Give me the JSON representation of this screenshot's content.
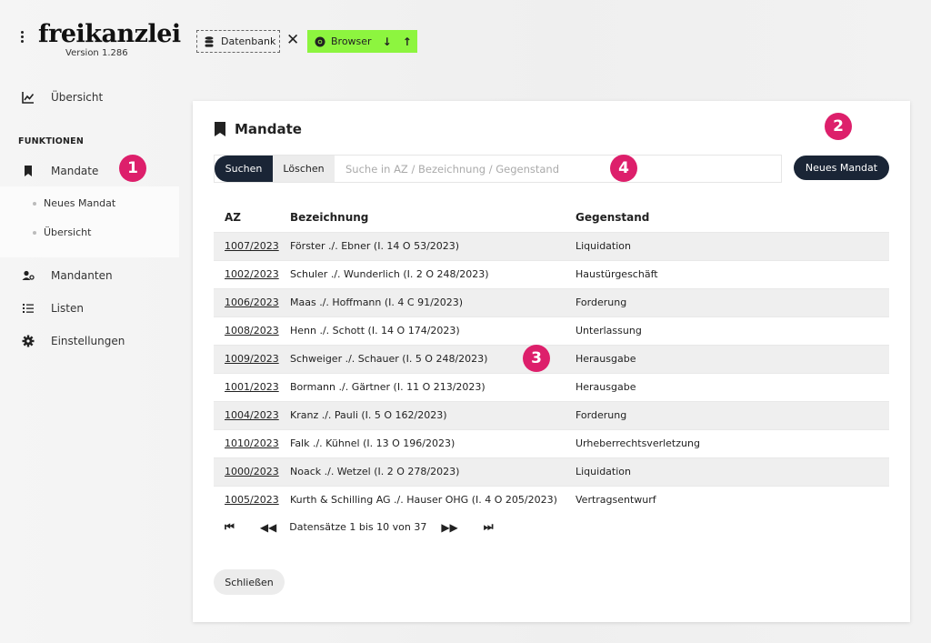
{
  "header": {
    "logo": "freikanzlei",
    "version": "Version 1.286",
    "db_label": "Datenbank",
    "sep": "✕",
    "browser_label": "Browser",
    "browser_arrows": "↓ ↑"
  },
  "sidebar": {
    "overview": "Übersicht",
    "section": "FUNKTIONEN",
    "mandate": "Mandate",
    "sub_new": "Neues Mandat",
    "sub_overview": "Übersicht",
    "clients": "Mandanten",
    "lists": "Listen",
    "settings": "Einstellungen"
  },
  "badges": [
    "1",
    "2",
    "3",
    "4"
  ],
  "main": {
    "title": "Mandate",
    "search_button": "Suchen",
    "clear_button": "Löschen",
    "search_placeholder": "Suche in AZ / Bezeichnung / Gegenstand",
    "new_button": "Neues Mandat",
    "columns": [
      "AZ",
      "Bezeichnung",
      "Gegenstand"
    ],
    "rows": [
      [
        "1007/2023",
        "Förster ./. Ebner (I. 14 O 53/2023)",
        "Liquidation"
      ],
      [
        "1002/2023",
        "Schuler ./. Wunderlich (I. 2 O 248/2023)",
        "Haustürgeschäft"
      ],
      [
        "1006/2023",
        "Maas ./. Hoffmann (I. 4 C 91/2023)",
        "Forderung"
      ],
      [
        "1008/2023",
        "Henn ./. Schott (I. 14 O 174/2023)",
        "Unterlassung"
      ],
      [
        "1009/2023",
        "Schweiger ./. Schauer (I. 5 O 248/2023)",
        "Herausgabe"
      ],
      [
        "1001/2023",
        "Bormann ./. Gärtner (I. 11 O 213/2023)",
        "Herausgabe"
      ],
      [
        "1004/2023",
        "Kranz ./. Pauli (I. 5 O 162/2023)",
        "Forderung"
      ],
      [
        "1010/2023",
        "Falk ./. Kühnel (I. 13 O 196/2023)",
        "Urheberrechtsverletzung"
      ],
      [
        "1000/2023",
        "Noack ./. Wetzel (I. 2 O 278/2023)",
        "Liquidation"
      ],
      [
        "1005/2023",
        "Kurth & Schilling AG ./. Hauser OHG (I. 4 O 205/2023)",
        "Vertragsentwurf"
      ]
    ],
    "pager_text": "Datensätze 1 bis 10 von 37",
    "pager_first": "⏮",
    "pager_prev": "◀◀",
    "pager_next": "▶▶",
    "pager_last": "⏭",
    "close_button": "Schließen"
  },
  "colors": {
    "accent_dark": "#1a2536",
    "browser_green": "#8df53f",
    "badge_pink": "#dd1f6b"
  }
}
